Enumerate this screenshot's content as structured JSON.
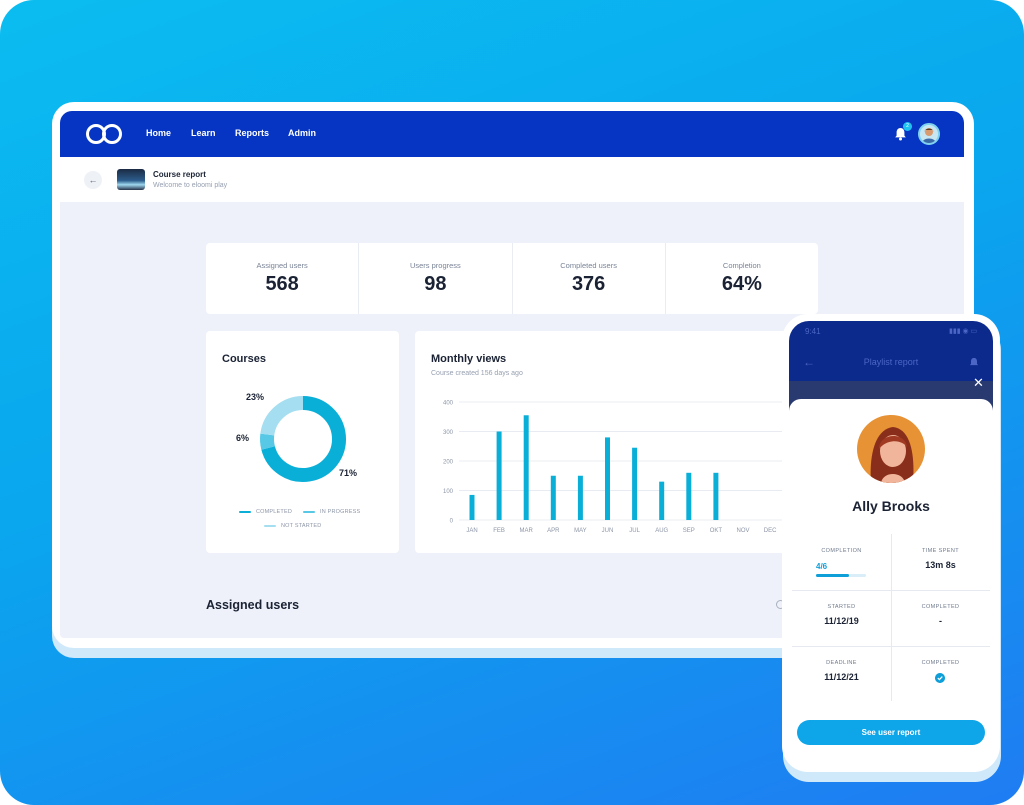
{
  "nav": {
    "links": [
      "Home",
      "Learn",
      "Reports",
      "Admin"
    ],
    "notification_count": "2"
  },
  "subheader": {
    "title": "Course report",
    "subtitle": "Welcome to eloomi play"
  },
  "stats": [
    {
      "label": "Assigned users",
      "value": "568"
    },
    {
      "label": "Users progress",
      "value": "98"
    },
    {
      "label": "Completed users",
      "value": "376"
    },
    {
      "label": "Completion",
      "value": "64%"
    }
  ],
  "courses": {
    "title": "Courses",
    "legend": {
      "completed": "COMPLETED",
      "in_progress": "IN PROGRESS",
      "not_started": "NOT STARTED"
    },
    "labels": {
      "completed": "71%",
      "in_progress": "6%",
      "not_started": "23%"
    }
  },
  "monthly_views": {
    "title": "Monthly views",
    "subtitle": "Course created 156 days ago"
  },
  "assigned_users": {
    "title": "Assigned users"
  },
  "colors": {
    "nav": "#0535c2",
    "accent": "#0aafd8",
    "in_progress": "#57c8e6",
    "not_started": "#a5def0",
    "button": "#0ea5e9"
  },
  "chart_data": [
    {
      "type": "pie",
      "title": "Courses",
      "categories": [
        "COMPLETED",
        "IN PROGRESS",
        "NOT STARTED"
      ],
      "values": [
        71,
        6,
        23
      ],
      "legend": "bottom"
    },
    {
      "type": "bar",
      "title": "Monthly views",
      "subtitle": "Course created 156 days ago",
      "categories": [
        "JAN",
        "FEB",
        "MAR",
        "APR",
        "MAY",
        "JUN",
        "JUL",
        "AUG",
        "SEP",
        "OKT",
        "NOV",
        "DEC"
      ],
      "values": [
        85,
        300,
        355,
        150,
        150,
        280,
        245,
        130,
        160,
        160,
        0,
        0
      ],
      "ylim": [
        0,
        400
      ],
      "yticks": [
        0,
        100,
        200,
        300,
        400
      ],
      "grid": true
    }
  ],
  "phone": {
    "time": "9:41",
    "title": "Playlist report",
    "user_name": "Ally Brooks",
    "completion_label": "COMPLETION",
    "completion_value": "4/6",
    "completion_progress": 0.6667,
    "time_spent_label": "TIME SPENT",
    "time_spent_value": "13m 8s",
    "started_label": "STARTED",
    "started_value": "11/12/19",
    "completed_label": "COMPLETED",
    "completed_value": "-",
    "deadline_label": "DEADLINE",
    "deadline_value": "11/12/21",
    "completed2_label": "COMPLETED",
    "button_label": "See user report"
  }
}
